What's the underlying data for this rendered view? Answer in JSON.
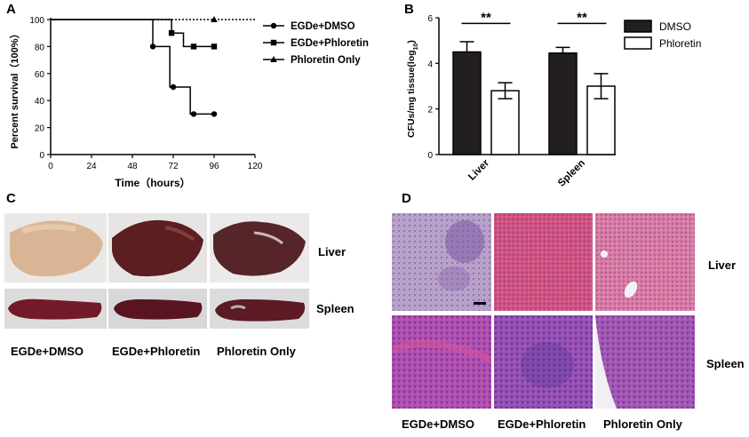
{
  "panels": {
    "A": "A",
    "B": "B",
    "C": "C",
    "D": "D"
  },
  "chart_data": [
    {
      "type": "line",
      "panel": "A",
      "ylabel": "Percent survival（100%）",
      "xlabel": "Time（hours）",
      "xlim": [
        0,
        120
      ],
      "ylim": [
        0,
        100
      ],
      "xticks": [
        "0",
        "24",
        "48",
        "72",
        "96",
        "120"
      ],
      "yticks": [
        "0",
        "20",
        "40",
        "60",
        "80",
        "100"
      ],
      "legend_position": "top-right",
      "series": [
        {
          "name": "EGDe+DMSO",
          "marker": "circle",
          "style": "solid",
          "steps": [
            [
              0,
              100
            ],
            [
              60,
              100
            ],
            [
              60,
              80
            ],
            [
              70,
              80
            ],
            [
              70,
              50
            ],
            [
              82,
              50
            ],
            [
              82,
              30
            ],
            [
              96,
              30
            ]
          ],
          "points": [
            [
              60,
              80
            ],
            [
              72,
              50
            ],
            [
              84,
              30
            ],
            [
              96,
              30
            ]
          ]
        },
        {
          "name": "EGDe+Phloretin",
          "marker": "square",
          "style": "solid",
          "steps": [
            [
              0,
              100
            ],
            [
              71,
              100
            ],
            [
              71,
              90
            ],
            [
              78,
              90
            ],
            [
              78,
              80
            ],
            [
              96,
              80
            ]
          ],
          "points": [
            [
              71,
              90
            ],
            [
              84,
              80
            ],
            [
              96,
              80
            ]
          ]
        },
        {
          "name": "Phloretin Only",
          "marker": "triangle",
          "style": "dotted",
          "steps": [
            [
              0,
              100
            ],
            [
              120,
              100
            ]
          ],
          "points": [
            [
              96,
              100
            ]
          ]
        }
      ]
    },
    {
      "type": "bar",
      "panel": "B",
      "ylabel_main": "CFUs/mg tissue(log",
      "ylabel_sub": "10",
      "ylabel_end": ")",
      "ylim": [
        0,
        6
      ],
      "yticks": [
        "0",
        "2",
        "4",
        "6"
      ],
      "categories": [
        "Liver",
        "Spleen"
      ],
      "legend_position": "top-right",
      "significance": [
        "**",
        "**"
      ],
      "series": [
        {
          "name": "DMSO",
          "color": "#231f20",
          "values": [
            4.5,
            4.45
          ],
          "errors": [
            0.45,
            0.25
          ]
        },
        {
          "name": "Phloretin",
          "color": "#ffffff",
          "values": [
            2.8,
            3.0
          ],
          "errors": [
            0.35,
            0.55
          ]
        }
      ]
    }
  ],
  "panel_c": {
    "row_labels": [
      "Liver",
      "Spleen"
    ],
    "column_labels": [
      "EGDe+DMSO",
      "EGDe+Phloretin",
      "Phloretin Only"
    ]
  },
  "panel_d": {
    "row_labels": [
      "Liver",
      "Spleen"
    ],
    "column_labels": [
      "EGDe+DMSO",
      "EGDe+Phloretin",
      "Phloretin Only"
    ]
  }
}
